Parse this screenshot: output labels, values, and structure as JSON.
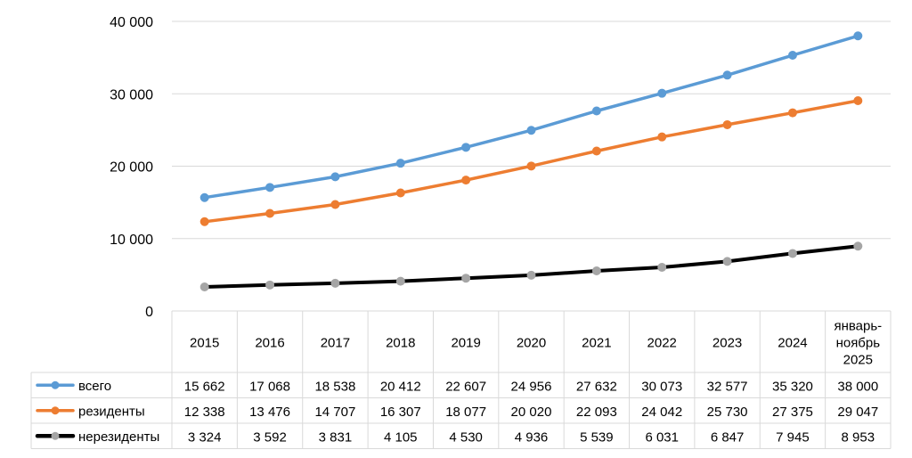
{
  "chart_data": {
    "type": "line",
    "title": "",
    "xlabel": "",
    "ylabel": "",
    "categories": [
      "2015",
      "2016",
      "2017",
      "2018",
      "2019",
      "2020",
      "2021",
      "2022",
      "2023",
      "2024",
      "январь-ноябрь 2025"
    ],
    "category_lines": [
      [
        "2015"
      ],
      [
        "2016"
      ],
      [
        "2017"
      ],
      [
        "2018"
      ],
      [
        "2019"
      ],
      [
        "2020"
      ],
      [
        "2021"
      ],
      [
        "2022"
      ],
      [
        "2023"
      ],
      [
        "2024"
      ],
      [
        "январь-",
        "ноябрь",
        "2025"
      ]
    ],
    "ylim": [
      0,
      40000
    ],
    "yticks": [
      0,
      10000,
      20000,
      30000,
      40000
    ],
    "ytick_labels": [
      "0",
      "10 000",
      "20 000",
      "30 000",
      "40 000"
    ],
    "grid": true,
    "legend": "data-table",
    "series": [
      {
        "name": "всего",
        "color": "#5B9BD5",
        "marker_color": "#5B9BD5",
        "values": [
          15662,
          17068,
          18538,
          20412,
          22607,
          24956,
          27632,
          30073,
          32577,
          35320,
          38000
        ],
        "labels": [
          "15 662",
          "17 068",
          "18 538",
          "20 412",
          "22 607",
          "24 956",
          "27 632",
          "30 073",
          "32 577",
          "35 320",
          "38 000"
        ]
      },
      {
        "name": "резиденты",
        "color": "#ED7D31",
        "marker_color": "#ED7D31",
        "values": [
          12338,
          13476,
          14707,
          16307,
          18077,
          20020,
          22093,
          24042,
          25730,
          27375,
          29047
        ],
        "labels": [
          "12 338",
          "13 476",
          "14 707",
          "16 307",
          "18 077",
          "20 020",
          "22 093",
          "24 042",
          "25 730",
          "27 375",
          "29 047"
        ]
      },
      {
        "name": "нерезиденты",
        "color": "#000000",
        "marker_color": "#A5A5A5",
        "values": [
          3324,
          3592,
          3831,
          4105,
          4530,
          4936,
          5539,
          6031,
          6847,
          7945,
          8953
        ],
        "labels": [
          "3 324",
          "3 592",
          "3 831",
          "4 105",
          "4 530",
          "4 936",
          "5 539",
          "6 031",
          "6 847",
          "7 945",
          "8 953"
        ]
      }
    ]
  }
}
